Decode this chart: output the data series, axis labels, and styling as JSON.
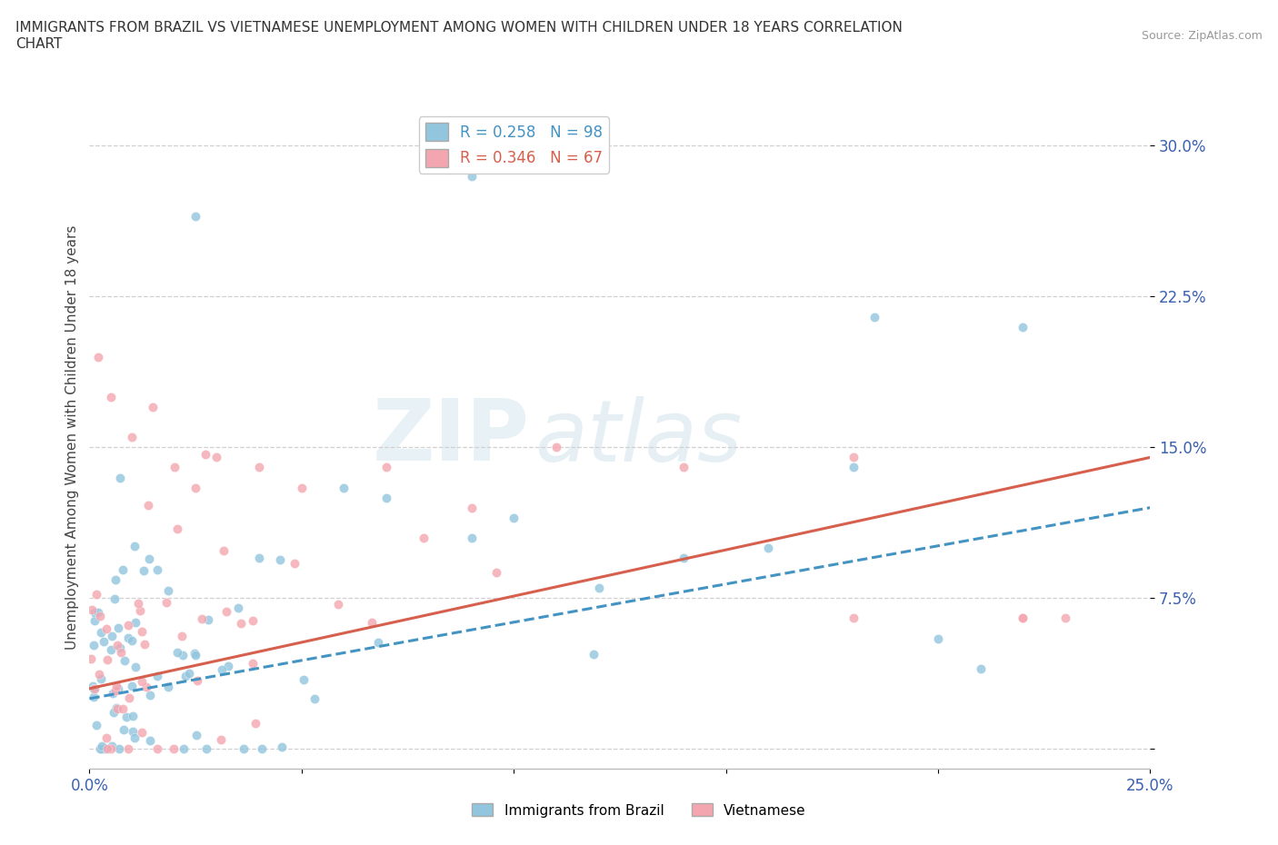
{
  "title": "IMMIGRANTS FROM BRAZIL VS VIETNAMESE UNEMPLOYMENT AMONG WOMEN WITH CHILDREN UNDER 18 YEARS CORRELATION\nCHART",
  "source": "Source: ZipAtlas.com",
  "ylabel": "Unemployment Among Women with Children Under 18 years",
  "xlim": [
    0.0,
    0.25
  ],
  "ylim": [
    -0.01,
    0.32
  ],
  "yticks": [
    0.0,
    0.075,
    0.15,
    0.225,
    0.3
  ],
  "ytick_labels": [
    "",
    "7.5%",
    "15.0%",
    "22.5%",
    "30.0%"
  ],
  "xticks": [
    0.0,
    0.05,
    0.1,
    0.15,
    0.2,
    0.25
  ],
  "xtick_labels": [
    "0.0%",
    "",
    "",
    "",
    "",
    "25.0%"
  ],
  "brazil_color": "#92c5de",
  "viet_color": "#f4a6b0",
  "brazil_R": 0.258,
  "brazil_N": 98,
  "viet_R": 0.346,
  "viet_N": 67,
  "brazil_line_color": "#4393c3",
  "viet_line_color": "#d6604d",
  "watermark_top": "ZIP",
  "watermark_bot": "atlas",
  "background_color": "#ffffff",
  "grid_color": "#d0d0d0",
  "legend_label_brazil": "Immigrants from Brazil",
  "legend_label_viet": "Vietnamese"
}
